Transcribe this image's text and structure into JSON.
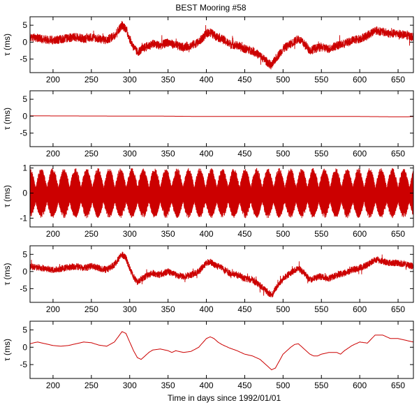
{
  "figure": {
    "title": "BEST Mooring #58",
    "xlabel": "Time in days since 1992/01/01",
    "line_color": "#cc0000"
  },
  "chart_data": [
    {
      "type": "line",
      "ylabel": "τ (ms)",
      "xlim": [
        170,
        670
      ],
      "ylim": [
        -9,
        7.5
      ],
      "xticks": [
        200,
        250,
        300,
        350,
        400,
        450,
        500,
        550,
        600,
        650
      ],
      "yticks": [
        5,
        0,
        -5
      ],
      "signal": "noisy",
      "noise_amplitude": 1.3,
      "series": [
        {
          "x": [
            170,
            180,
            190,
            200,
            210,
            220,
            230,
            240,
            250,
            260,
            270,
            280,
            285,
            290,
            295,
            300,
            305,
            310,
            320,
            330,
            340,
            350,
            360,
            370,
            380,
            390,
            400,
            405,
            410,
            420,
            430,
            440,
            450,
            460,
            470,
            480,
            485,
            490,
            500,
            510,
            520,
            530,
            535,
            540,
            550,
            560,
            570,
            580,
            590,
            600,
            610,
            620,
            630,
            640,
            650,
            660,
            670
          ],
          "y": [
            1.5,
            1.2,
            0.8,
            0.5,
            0.8,
            1.2,
            1.5,
            1.0,
            1.5,
            1.0,
            0.5,
            2.0,
            3.5,
            5.0,
            4.0,
            1.0,
            -1.5,
            -3.0,
            -1.5,
            -0.5,
            -1.0,
            0.0,
            -1.0,
            -1.5,
            -1.0,
            0.0,
            2.5,
            3.0,
            2.0,
            1.0,
            -0.5,
            -1.0,
            -2.0,
            -2.5,
            -4.0,
            -6.0,
            -7.0,
            -5.0,
            -2.0,
            -0.5,
            1.0,
            -1.0,
            -2.5,
            -2.0,
            -1.5,
            -2.0,
            -1.0,
            -0.5,
            0.5,
            1.0,
            2.0,
            3.5,
            3.0,
            2.5,
            2.5,
            2.0,
            1.5
          ]
        }
      ]
    },
    {
      "type": "line",
      "ylabel": "τ (ms)",
      "xlim": [
        170,
        670
      ],
      "ylim": [
        -9,
        7.5
      ],
      "xticks": [
        200,
        250,
        300,
        350,
        400,
        450,
        500,
        550,
        600,
        650
      ],
      "yticks": [
        5,
        0,
        -5
      ],
      "signal": "smooth",
      "series": [
        {
          "x": [
            170,
            350,
            400,
            500,
            600,
            660,
            670
          ],
          "y": [
            0.1,
            0.0,
            -0.1,
            -0.1,
            -0.1,
            -0.2,
            -0.1
          ]
        }
      ]
    },
    {
      "type": "line",
      "ylabel": "τ (ms)",
      "xlim": [
        170,
        670
      ],
      "ylim": [
        -1.35,
        1.1
      ],
      "xticks": [
        200,
        250,
        300,
        350,
        400,
        450,
        500,
        550,
        600,
        650
      ],
      "yticks": [
        1,
        0,
        -1
      ],
      "signal": "tidal",
      "envelope_period_days": 14.77,
      "envelope_max": 1.0,
      "envelope_min": 0.3
    },
    {
      "type": "line",
      "ylabel": "τ (ms)",
      "xlim": [
        170,
        670
      ],
      "ylim": [
        -9,
        7.5
      ],
      "xticks": [
        200,
        250,
        300,
        350,
        400,
        450,
        500,
        550,
        600,
        650
      ],
      "yticks": [
        5,
        0,
        -5
      ],
      "signal": "noisy",
      "noise_amplitude": 1.0,
      "series": [
        {
          "x": [
            170,
            180,
            190,
            200,
            210,
            220,
            230,
            240,
            250,
            260,
            270,
            280,
            285,
            290,
            295,
            300,
            305,
            310,
            320,
            330,
            340,
            350,
            360,
            370,
            380,
            390,
            400,
            405,
            410,
            420,
            430,
            440,
            450,
            460,
            470,
            480,
            485,
            490,
            500,
            510,
            520,
            530,
            535,
            540,
            550,
            560,
            570,
            580,
            590,
            600,
            610,
            620,
            630,
            640,
            650,
            660,
            670
          ],
          "y": [
            1.5,
            1.2,
            0.8,
            0.5,
            0.8,
            1.2,
            1.5,
            1.0,
            1.5,
            1.0,
            0.5,
            2.0,
            3.5,
            5.0,
            4.0,
            1.0,
            -1.5,
            -3.0,
            -1.5,
            -0.5,
            -1.0,
            0.0,
            -1.0,
            -1.5,
            -1.0,
            0.0,
            2.5,
            3.0,
            2.0,
            1.0,
            -0.5,
            -1.0,
            -2.0,
            -2.5,
            -4.0,
            -6.0,
            -7.0,
            -5.0,
            -2.0,
            -0.5,
            1.0,
            -1.0,
            -2.5,
            -2.0,
            -1.5,
            -2.0,
            -1.0,
            -0.5,
            0.5,
            1.0,
            2.0,
            3.5,
            3.0,
            2.5,
            2.5,
            2.0,
            1.5
          ]
        }
      ]
    },
    {
      "type": "line",
      "ylabel": "τ (ms)",
      "xlim": [
        170,
        670
      ],
      "ylim": [
        -9,
        7.5
      ],
      "xticks": [
        200,
        250,
        300,
        350,
        400,
        450,
        500,
        550,
        600,
        650
      ],
      "yticks": [
        5,
        0,
        -5
      ],
      "signal": "smooth",
      "series": [
        {
          "x": [
            170,
            175,
            180,
            190,
            200,
            210,
            220,
            230,
            240,
            250,
            260,
            270,
            280,
            285,
            290,
            295,
            300,
            305,
            310,
            315,
            320,
            325,
            330,
            340,
            350,
            355,
            360,
            370,
            380,
            390,
            400,
            405,
            410,
            415,
            420,
            430,
            440,
            450,
            460,
            470,
            475,
            480,
            485,
            490,
            500,
            510,
            515,
            520,
            525,
            530,
            535,
            540,
            545,
            550,
            560,
            570,
            575,
            580,
            590,
            600,
            610,
            620,
            630,
            640,
            650,
            660,
            670
          ],
          "y": [
            1.0,
            1.3,
            1.5,
            1.0,
            0.5,
            0.3,
            0.5,
            1.0,
            1.5,
            1.3,
            0.6,
            0.3,
            1.5,
            3.0,
            4.5,
            4.0,
            1.5,
            -1.0,
            -3.0,
            -3.5,
            -2.5,
            -1.5,
            -0.8,
            -0.5,
            -1.0,
            -1.5,
            -1.0,
            -1.5,
            -1.2,
            0.0,
            2.5,
            3.0,
            2.5,
            1.5,
            0.8,
            -0.2,
            -1.0,
            -2.0,
            -2.5,
            -3.5,
            -4.5,
            -5.5,
            -6.5,
            -6.0,
            -2.0,
            0.0,
            0.8,
            1.0,
            0.0,
            -1.0,
            -2.0,
            -2.5,
            -2.5,
            -2.0,
            -1.5,
            -1.5,
            -2.0,
            -1.0,
            0.5,
            1.5,
            1.2,
            3.5,
            3.5,
            2.5,
            2.5,
            2.0,
            1.5
          ]
        }
      ]
    }
  ]
}
